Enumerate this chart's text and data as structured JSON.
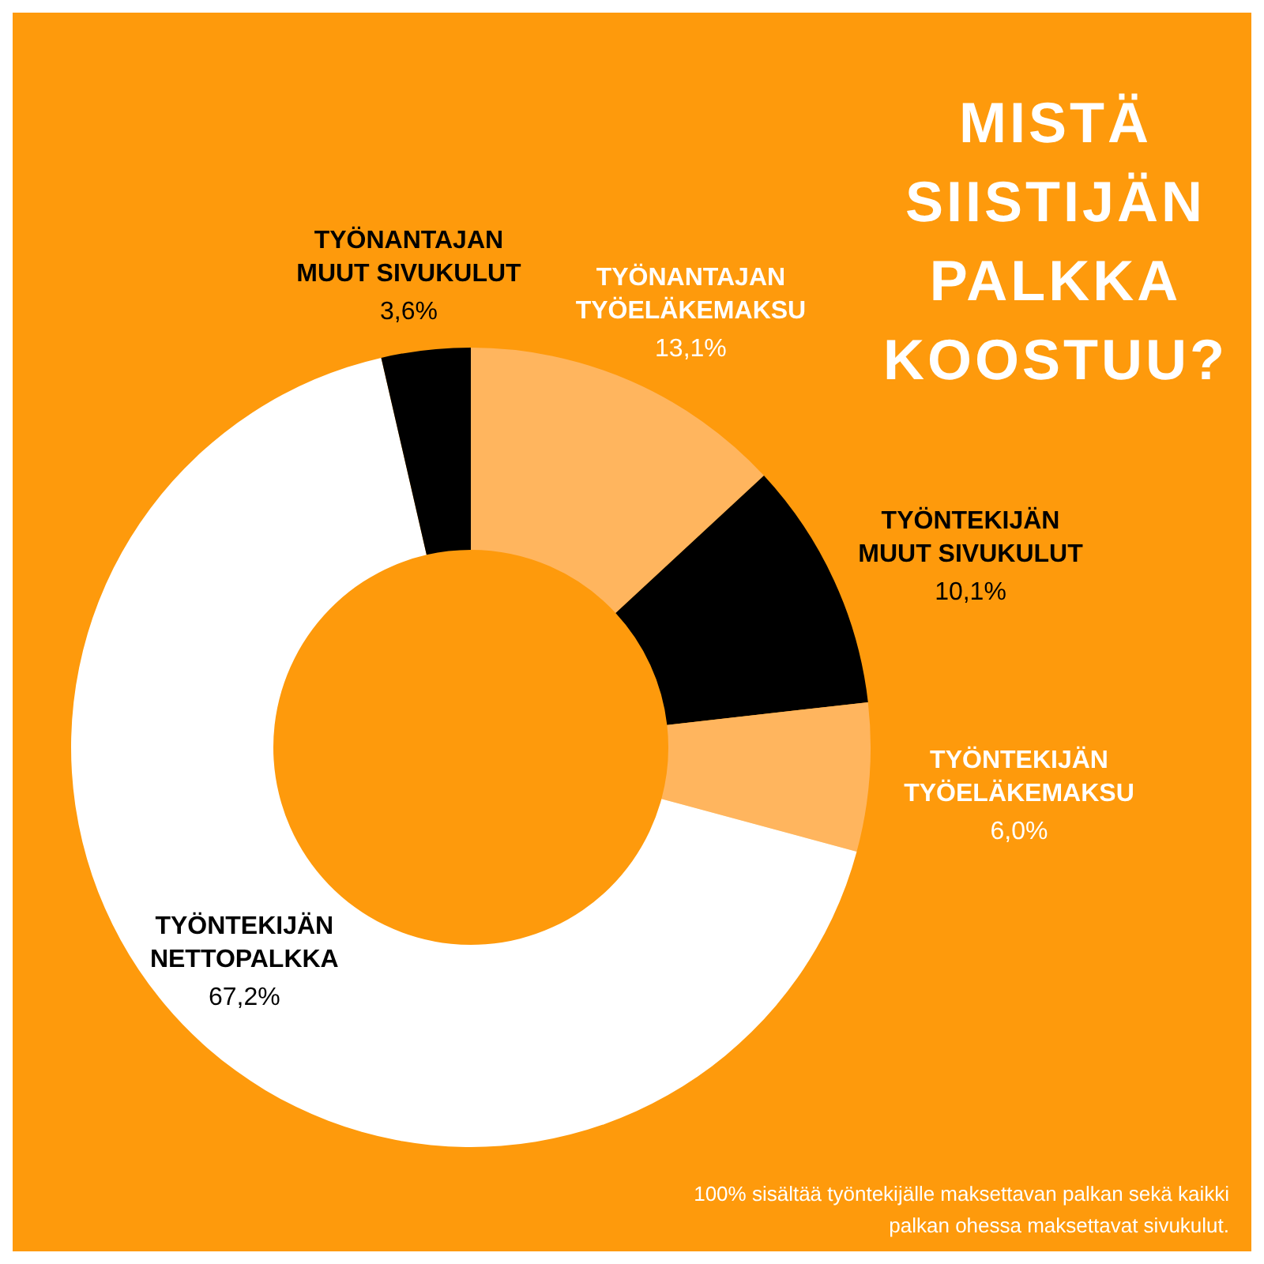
{
  "chart_data": {
    "type": "donut",
    "title": "MISTÄ SIISTIJÄN PALKKA KOOSTUU?",
    "categories": [
      "TYÖNANTAJAN TYÖELÄKEMAKSU",
      "TYÖNTEKIJÄN MUUT SIVUKULUT",
      "TYÖNTEKIJÄN TYÖELÄKEMAKSU",
      "TYÖNTEKIJÄN NETTOPALKKA",
      "TYÖNANTAJAN MUUT SIVUKULUT"
    ],
    "values": [
      13.1,
      10.1,
      6.0,
      67.2,
      3.6
    ],
    "colors": [
      "#ffb55e",
      "#000000",
      "#ffb55e",
      "#ffffff",
      "#000000"
    ],
    "value_labels": [
      "13,1%",
      "10,1%",
      "6,0%",
      "67,2%",
      "3,6%"
    ],
    "annotations": [
      "100% sisältää työntekijälle maksettavan palkan sekä kaikki palkan ohessa maksettavat sivukulut."
    ]
  }
}
